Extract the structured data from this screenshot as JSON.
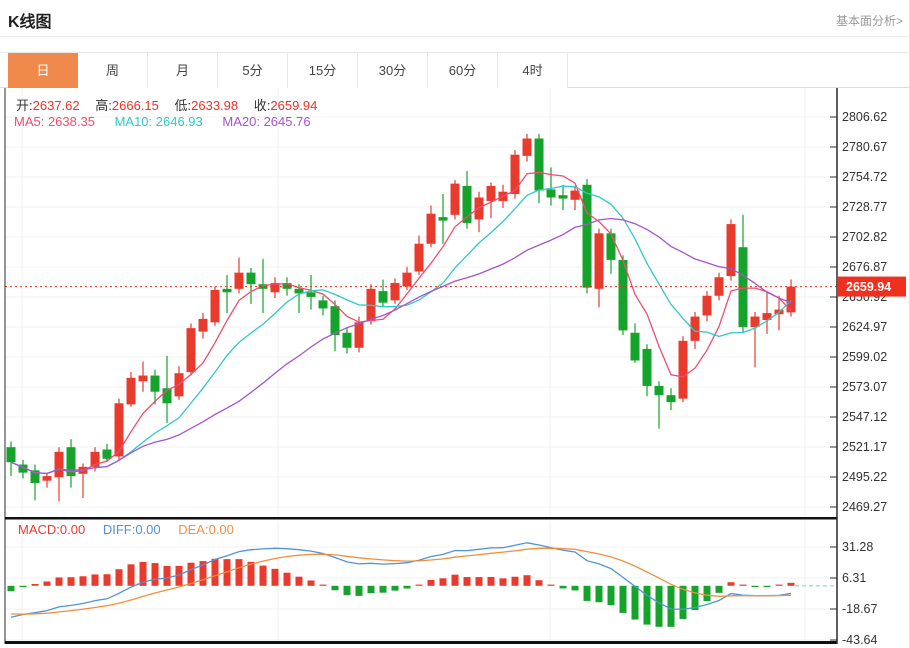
{
  "header": {
    "title": "K线图",
    "link": "基本面分析>"
  },
  "tabs": [
    {
      "key": "day",
      "label": "日",
      "active": true
    },
    {
      "key": "week",
      "label": "周",
      "active": false
    },
    {
      "key": "month",
      "label": "月",
      "active": false
    },
    {
      "key": "5min",
      "label": "5分",
      "active": false
    },
    {
      "key": "15min",
      "label": "15分",
      "active": false
    },
    {
      "key": "30min",
      "label": "30分",
      "active": false
    },
    {
      "key": "60min",
      "label": "60分",
      "active": false
    },
    {
      "key": "4hour",
      "label": "4时",
      "active": false
    }
  ],
  "ohlc": {
    "open_label": "开:",
    "open": "2637.62",
    "high_label": "高:",
    "high": "2666.15",
    "low_label": "低:",
    "low": "2633.98",
    "close_label": "收:",
    "close": "2659.94"
  },
  "ma_row": {
    "ma5": "MA5: 2638.35",
    "ma10": "MA10: 2646.93",
    "ma20": "MA20: 2645.76"
  },
  "macd_row": {
    "macd": "MACD:0.00",
    "diff": "DIFF:0.00",
    "dea": "DEA:0.00"
  },
  "colors": {
    "accent": "#ef8a4c",
    "up": "#e93a2e",
    "down": "#16a32b",
    "badge": "#f02f1e",
    "ma5": "#ef4d70",
    "ma10": "#2fc9c5",
    "ma20": "#a455cc",
    "diff": "#4f94d6",
    "dea": "#f0903f",
    "zero_dash": "#8ed4d6",
    "grid": "#f1f1f1",
    "axis": "#2b2b2b",
    "text": "#333333",
    "link": "#999999"
  },
  "chart_data": {
    "type": "candlestick",
    "price_panel": {
      "y_ticks": [
        "2806.62",
        "2780.67",
        "2754.72",
        "2728.77",
        "2702.82",
        "2676.87",
        "2650.92",
        "2624.97",
        "2599.02",
        "2573.07",
        "2547.12",
        "2521.17",
        "2495.22",
        "2469.27"
      ],
      "last_price": 2659.94,
      "last_price_label": "2659.94",
      "ma_periods": [
        5,
        10,
        20
      ],
      "candles_ohlc": [
        [
          2521,
          2526,
          2496,
          2508
        ],
        [
          2506,
          2510,
          2494,
          2499
        ],
        [
          2501,
          2506,
          2475,
          2490
        ],
        [
          2492,
          2499,
          2486,
          2496
        ],
        [
          2495,
          2521,
          2474,
          2517
        ],
        [
          2521,
          2528,
          2486,
          2496
        ],
        [
          2498,
          2507,
          2477,
          2504
        ],
        [
          2504,
          2521,
          2500,
          2517
        ],
        [
          2519,
          2524,
          2508,
          2511
        ],
        [
          2513,
          2563,
          2510,
          2559
        ],
        [
          2558,
          2586,
          2556,
          2581
        ],
        [
          2578,
          2595,
          2569,
          2583
        ],
        [
          2583,
          2588,
          2558,
          2569
        ],
        [
          2572,
          2600,
          2542,
          2559
        ],
        [
          2565,
          2591,
          2562,
          2585
        ],
        [
          2586,
          2628,
          2583,
          2624
        ],
        [
          2621,
          2637,
          2615,
          2632
        ],
        [
          2629,
          2660,
          2626,
          2657
        ],
        [
          2658,
          2670,
          2637,
          2655
        ],
        [
          2658,
          2685,
          2654,
          2672
        ],
        [
          2672,
          2676,
          2645,
          2662
        ],
        [
          2662,
          2684,
          2637,
          2658
        ],
        [
          2655,
          2668,
          2650,
          2663
        ],
        [
          2663,
          2668,
          2652,
          2658
        ],
        [
          2658,
          2662,
          2637,
          2654
        ],
        [
          2655,
          2670,
          2640,
          2651
        ],
        [
          2648,
          2652,
          2635,
          2641
        ],
        [
          2643,
          2648,
          2604,
          2618
        ],
        [
          2620,
          2625,
          2602,
          2607
        ],
        [
          2607,
          2634,
          2603,
          2629
        ],
        [
          2630,
          2662,
          2627,
          2658
        ],
        [
          2656,
          2666,
          2643,
          2646
        ],
        [
          2648,
          2667,
          2645,
          2663
        ],
        [
          2660,
          2677,
          2657,
          2672
        ],
        [
          2673,
          2704,
          2670,
          2697
        ],
        [
          2697,
          2730,
          2694,
          2723
        ],
        [
          2720,
          2740,
          2697,
          2717
        ],
        [
          2722,
          2752,
          2718,
          2749
        ],
        [
          2747,
          2760,
          2710,
          2715
        ],
        [
          2718,
          2742,
          2707,
          2737
        ],
        [
          2734,
          2750,
          2719,
          2747
        ],
        [
          2734,
          2748,
          2728,
          2742
        ],
        [
          2740,
          2778,
          2736,
          2774
        ],
        [
          2773,
          2792,
          2768,
          2788
        ],
        [
          2788,
          2792,
          2732,
          2743
        ],
        [
          2744,
          2763,
          2730,
          2737
        ],
        [
          2739,
          2748,
          2726,
          2736
        ],
        [
          2735,
          2747,
          2726,
          2743
        ],
        [
          2748,
          2753,
          2654,
          2659
        ],
        [
          2658,
          2710,
          2642,
          2706
        ],
        [
          2706,
          2710,
          2671,
          2683
        ],
        [
          2683,
          2687,
          2618,
          2622
        ],
        [
          2620,
          2628,
          2594,
          2596
        ],
        [
          2606,
          2610,
          2565,
          2574
        ],
        [
          2574,
          2578,
          2537,
          2566
        ],
        [
          2566,
          2572,
          2553,
          2560
        ],
        [
          2563,
          2617,
          2560,
          2613
        ],
        [
          2613,
          2638,
          2606,
          2634
        ],
        [
          2635,
          2656,
          2630,
          2652
        ],
        [
          2652,
          2672,
          2648,
          2668
        ],
        [
          2669,
          2718,
          2665,
          2714
        ],
        [
          2694,
          2722,
          2620,
          2625
        ],
        [
          2625,
          2638,
          2590,
          2634
        ],
        [
          2631,
          2655,
          2619,
          2637
        ],
        [
          2636,
          2652,
          2622,
          2640
        ],
        [
          2637.62,
          2666.15,
          2633.98,
          2659.94
        ]
      ]
    },
    "macd_panel": {
      "y_ticks": [
        "31.28",
        "6.31",
        "-18.67",
        "-43.64"
      ]
    }
  }
}
